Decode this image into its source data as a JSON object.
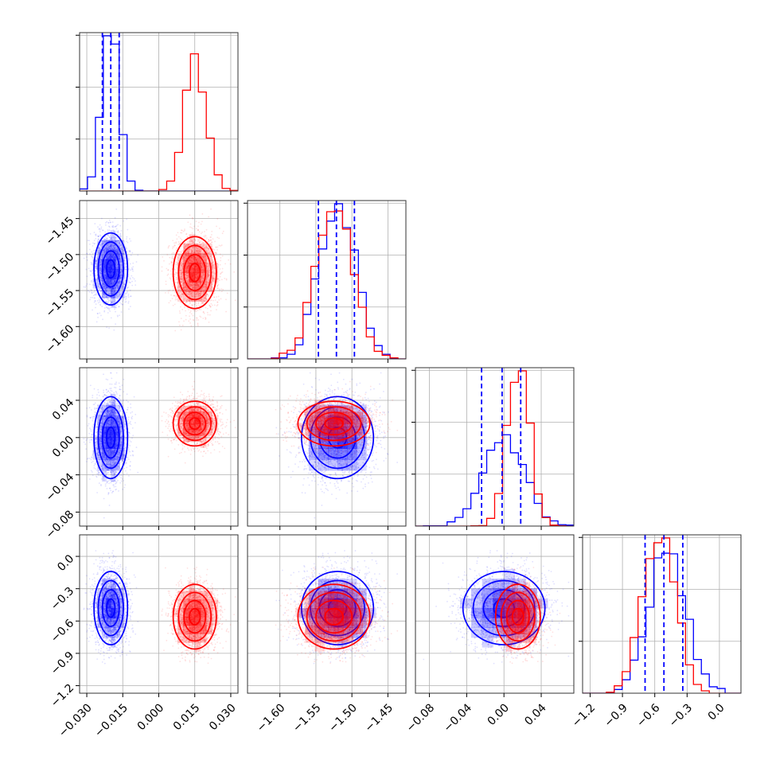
{
  "chart_data": {
    "type": "corner",
    "grid": true,
    "parameters": [
      {
        "range": [
          -0.033,
          0.033
        ],
        "ticks": [
          -0.03,
          -0.015,
          0.0,
          0.015,
          0.03
        ],
        "tick_labels": [
          "−0.030",
          "−0.015",
          "0.000",
          "0.015",
          "0.030"
        ]
      },
      {
        "range": [
          -1.645,
          -1.425
        ],
        "ticks": [
          -1.6,
          -1.55,
          -1.5,
          -1.45
        ],
        "tick_labels": [
          "−1.60",
          "−1.55",
          "−1.50",
          "−1.45"
        ]
      },
      {
        "range": [
          -0.095,
          0.075
        ],
        "ticks": [
          -0.08,
          -0.04,
          0.0,
          0.04
        ],
        "tick_labels": [
          "−0.08",
          "−0.04",
          "0.00",
          "0.04"
        ]
      },
      {
        "range": [
          -1.27,
          0.2
        ],
        "ticks": [
          -1.2,
          -0.9,
          -0.6,
          -0.3,
          0.0
        ],
        "tick_labels": [
          "−1.2",
          "−0.9",
          "−0.6",
          "−0.3",
          "0.0"
        ]
      }
    ],
    "series": [
      {
        "color": "#0000ff",
        "samples": 2500,
        "mean": [
          -0.02,
          -1.52,
          0.0,
          -0.48
        ],
        "sd": [
          0.0035,
          0.025,
          0.022,
          0.17
        ],
        "quantile_lines": [
          [
            -0.0235,
            -0.02,
            -0.0165
          ],
          [
            -1.5465,
            -1.5215,
            -1.4965
          ],
          [
            -0.024,
            -0.002,
            0.018
          ],
          [
            -0.69,
            -0.515,
            -0.34
          ]
        ]
      },
      {
        "color": "#ff0000",
        "samples": 2500,
        "mean": [
          0.015,
          -1.525,
          0.015,
          -0.56
        ],
        "sd": [
          0.0045,
          0.025,
          0.012,
          0.15
        ],
        "quantile_lines": []
      }
    ]
  }
}
